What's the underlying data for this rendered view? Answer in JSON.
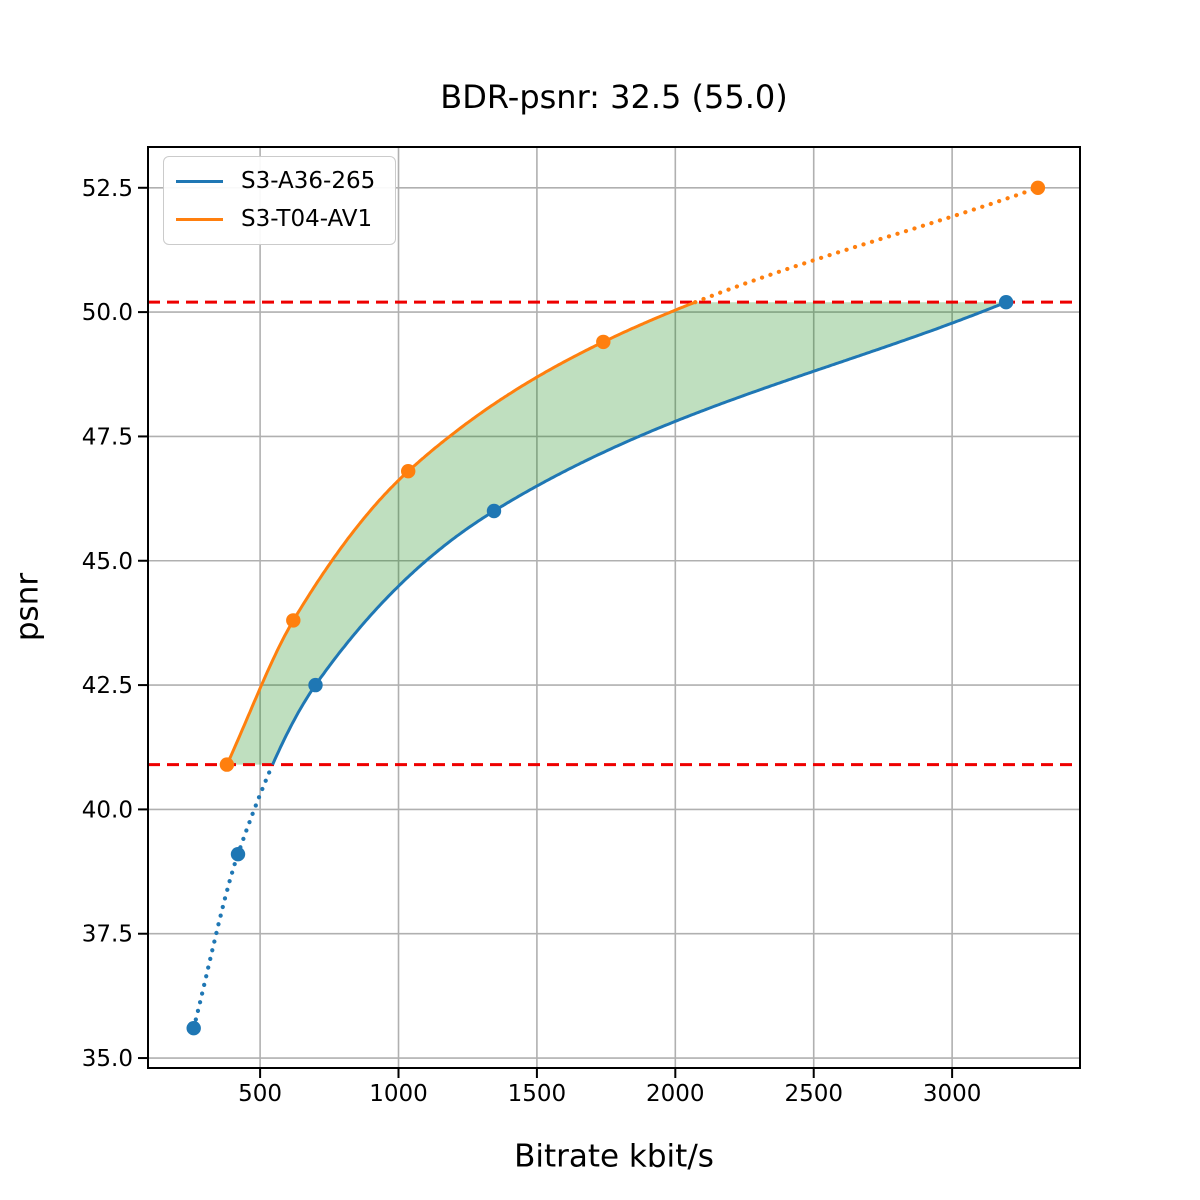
{
  "chart_data": {
    "type": "line",
    "title": "BDR-psnr: 32.5 (55.0)",
    "xlabel": "Bitrate kbit/s",
    "ylabel": "psnr",
    "xlim": [
      95,
      3462
    ],
    "ylim": [
      34.8,
      53.32
    ],
    "xticks": [
      500,
      1000,
      1500,
      2000,
      2500,
      3000
    ],
    "xtick_labels": [
      "500",
      "1000",
      "1500",
      "2000",
      "2500",
      "3000"
    ],
    "yticks": [
      35.0,
      37.5,
      40.0,
      42.5,
      45.0,
      47.5,
      50.0,
      52.5
    ],
    "ytick_labels": [
      "35.0",
      "37.5",
      "40.0",
      "42.5",
      "45.0",
      "47.5",
      "50.0",
      "52.5"
    ],
    "grid": true,
    "grid_color": "#b0b0b0",
    "legend_position": "upper-left",
    "series": [
      {
        "name": "S3-A36-265",
        "color": "#1f77b4",
        "x": [
          260,
          420,
          700,
          1345,
          3195
        ],
        "y": [
          35.6,
          39.1,
          42.5,
          46.0,
          50.2
        ],
        "style_note": "solid inside overlap band, dotted below it, round markers at points"
      },
      {
        "name": "S3-T04-AV1",
        "color": "#ff7f0e",
        "x": [
          380,
          620,
          1035,
          1740,
          3310
        ],
        "y": [
          40.9,
          43.8,
          46.8,
          49.4,
          52.5
        ],
        "style_note": "solid inside overlap band, dotted above it, round markers at points"
      }
    ],
    "hlines": {
      "upper": 50.2,
      "lower": 40.9,
      "color": "#ee0000",
      "style": "dashed",
      "note": "red dashed lines marking the psnr overlap interval used for BD-rate"
    },
    "fill_between": {
      "color": "#008000",
      "opacity": 0.25,
      "note": "green shaded area between the two rate-distortion curves clipped to the overlap interval"
    }
  }
}
